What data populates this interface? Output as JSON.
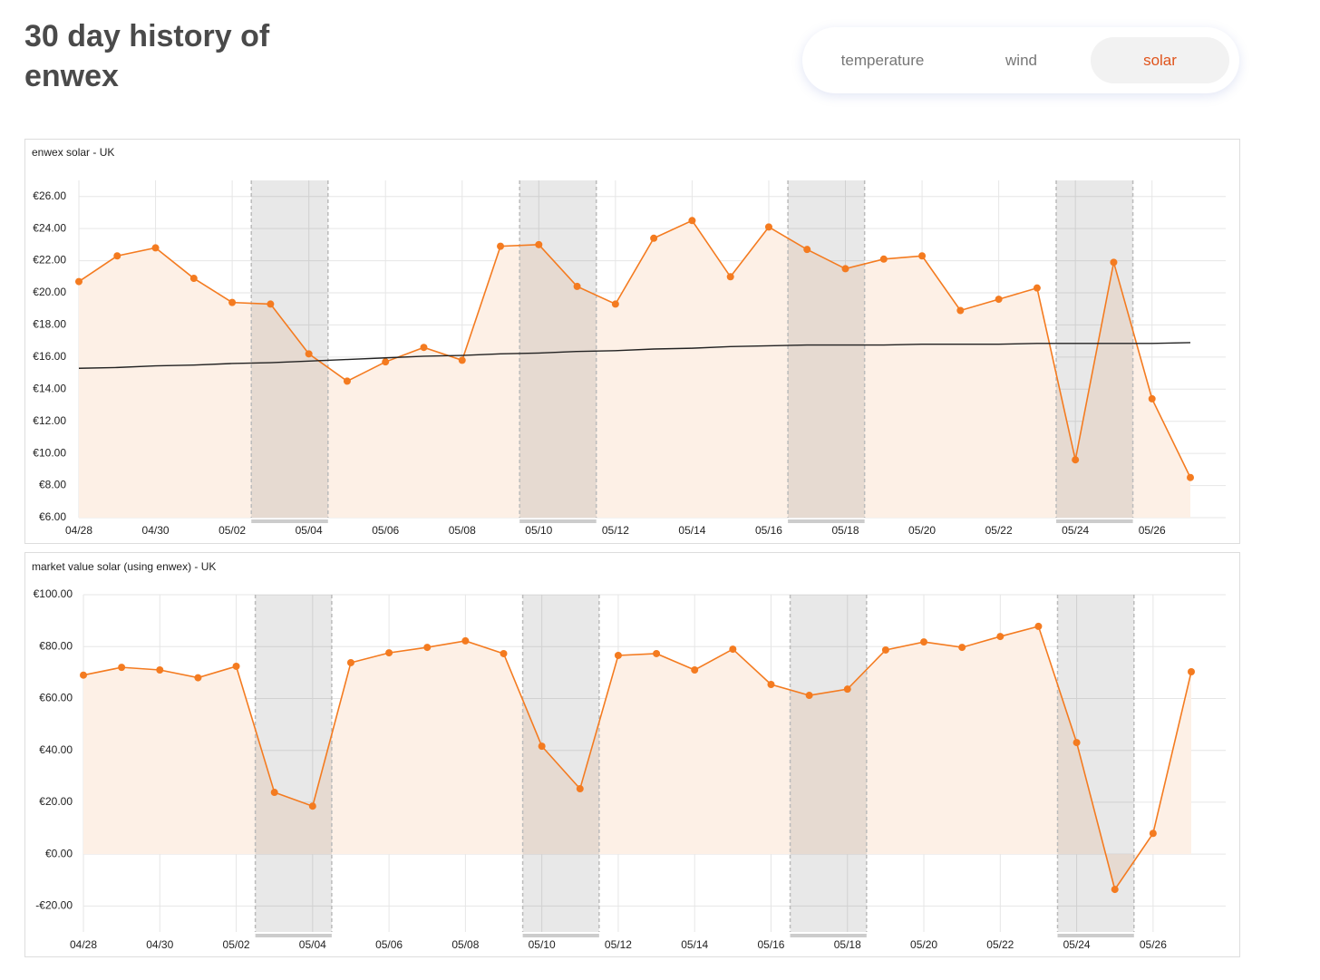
{
  "header": {
    "title": "30 day history of enwex"
  },
  "tabs": {
    "items": [
      "temperature",
      "wind",
      "solar"
    ],
    "active": 2
  },
  "chart_data": [
    {
      "type": "line",
      "title": "enwex solar - UK",
      "categories": [
        "04/28",
        null,
        "04/30",
        null,
        "05/02",
        null,
        "05/04",
        null,
        "05/06",
        null,
        "05/08",
        null,
        "05/10",
        null,
        "05/12",
        null,
        "05/14",
        null,
        "05/16",
        null,
        "05/18",
        null,
        "05/20",
        null,
        "05/22",
        null,
        "05/24",
        null,
        "05/26",
        null
      ],
      "series": [
        {
          "color": "#f47b20",
          "area_color": "#fdf0e6",
          "markers": true,
          "values": [
            20.7,
            22.3,
            22.8,
            20.9,
            19.4,
            19.3,
            16.2,
            14.5,
            15.7,
            16.6,
            15.8,
            22.9,
            23.0,
            20.4,
            19.3,
            23.4,
            24.5,
            21.0,
            24.1,
            22.7,
            21.5,
            22.1,
            22.3,
            18.9,
            19.6,
            20.3,
            9.6,
            21.9,
            13.4,
            8.5
          ]
        },
        {
          "color": "#222222",
          "markers": false,
          "values": [
            15.3,
            15.35,
            15.45,
            15.5,
            15.6,
            15.65,
            15.75,
            15.85,
            15.95,
            16.05,
            16.1,
            16.2,
            16.25,
            16.35,
            16.4,
            16.5,
            16.55,
            16.65,
            16.7,
            16.75,
            16.75,
            16.75,
            16.8,
            16.8,
            16.8,
            16.85,
            16.85,
            16.85,
            16.85,
            16.9
          ]
        }
      ],
      "highlight_ranges": [
        [
          5,
          6
        ],
        [
          12,
          13
        ],
        [
          19,
          20
        ],
        [
          26,
          27
        ]
      ],
      "ylim": [
        6,
        27
      ],
      "yticks": [
        {
          "value": 6,
          "label": "€6.00"
        },
        {
          "value": 8,
          "label": "€8.00"
        },
        {
          "value": 10,
          "label": "€10.00"
        },
        {
          "value": 12,
          "label": "€12.00"
        },
        {
          "value": 14,
          "label": "€14.00"
        },
        {
          "value": 16,
          "label": "€16.00"
        },
        {
          "value": 18,
          "label": "€18.00"
        },
        {
          "value": 20,
          "label": "€20.00"
        },
        {
          "value": 22,
          "label": "€22.00"
        },
        {
          "value": 24,
          "label": "€24.00"
        },
        {
          "value": 26,
          "label": "€26.00"
        }
      ],
      "grid": true
    },
    {
      "type": "line",
      "title": "market value solar (using enwex) - UK",
      "categories": [
        "04/28",
        null,
        "04/30",
        null,
        "05/02",
        null,
        "05/04",
        null,
        "05/06",
        null,
        "05/08",
        null,
        "05/10",
        null,
        "05/12",
        null,
        "05/14",
        null,
        "05/16",
        null,
        "05/18",
        null,
        "05/20",
        null,
        "05/22",
        null,
        "05/24",
        null,
        "05/26",
        null
      ],
      "series": [
        {
          "color": "#f47b20",
          "area_color": "#fdf0e6",
          "markers": true,
          "values": [
            69,
            72,
            71,
            68,
            72.4,
            23.8,
            18.5,
            73.8,
            77.6,
            79.7,
            82.2,
            77.3,
            41.6,
            25.2,
            76.6,
            77.3,
            71,
            79,
            65.4,
            61.2,
            63.6,
            78.7,
            81.8,
            79.7,
            83.9,
            87.8,
            43,
            -13.6,
            8,
            70.3
          ]
        }
      ],
      "highlight_ranges": [
        [
          5,
          6
        ],
        [
          12,
          13
        ],
        [
          19,
          20
        ],
        [
          26,
          27
        ]
      ],
      "ylim": [
        -30,
        100
      ],
      "yticks": [
        {
          "value": -20,
          "label": "-€20.00"
        },
        {
          "value": 0,
          "label": "€0.00"
        },
        {
          "value": 20,
          "label": "€20.00"
        },
        {
          "value": 40,
          "label": "€40.00"
        },
        {
          "value": 60,
          "label": "€60.00"
        },
        {
          "value": 80,
          "label": "€80.00"
        },
        {
          "value": 100,
          "label": "€100.00"
        }
      ],
      "grid": true
    }
  ]
}
